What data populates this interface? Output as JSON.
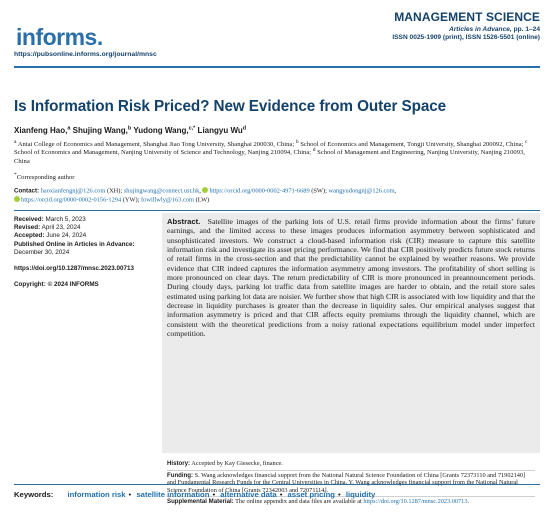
{
  "header": {
    "logo_text": "informs.",
    "journal_url": "https://pubsonline.informs.org/journal/mnsc",
    "journal_name": "MANAGEMENT SCIENCE",
    "issue_italic": "Articles in Advance,",
    "issue_pages": " pp. 1–24",
    "issn": "ISSN 0025-1909 (print), ISSN 1526-5501 (online)"
  },
  "title": "Is Information Risk Priced? New Evidence from Outer Space",
  "authors": [
    {
      "name": "Xianfeng Hao,",
      "sup": "a"
    },
    {
      "name": " Shujing Wang,",
      "sup": "b"
    },
    {
      "name": " Yudong Wang,",
      "sup": "c,*"
    },
    {
      "name": " Liangyu Wu",
      "sup": "d"
    }
  ],
  "affiliations": [
    {
      "sup": "a",
      "text": " Antai College of Economics and Management, Shanghai Jiao Tong University, Shanghai 200030, China; "
    },
    {
      "sup": "b",
      "text": " School of Economics and Management, Tongji University, Shanghai 200092, China; "
    },
    {
      "sup": "c",
      "text": " School of Economics and Management, Nanjing University of Science and Technology, Nanjing 210094, China; "
    },
    {
      "sup": "d",
      "text": " School of Management and Engineering, Nanjing University, Nanjing 210093, China"
    }
  ],
  "corresponding": {
    "sup": "*",
    "text": "Corresponding author"
  },
  "contact": {
    "label": "Contact:",
    "email_xh": "haoxianfengnj@126.com",
    "tag_xh": " (XH); ",
    "email_sw": "shujingwang@connect.ust.hk",
    "sep_sw": ", ",
    "orcid_sw": "https://orcid.org/0000-0002-4971-6689",
    "tag_sw": " (SW); ",
    "email_yw": "wangyudongnj@126.com",
    "sep_yw": ",",
    "orcid_yw": "https://orcid.org/0000-0002-0156-1294",
    "tag_yw": " (YW); ",
    "email_lw": "fowillwly@163.com",
    "tag_lw": " (LW)"
  },
  "meta": {
    "received_label": "Received:",
    "received": " March 5, 2023",
    "revised_label": "Revised:",
    "revised": " April 23, 2024",
    "accepted_label": "Accepted:",
    "accepted": " June 24, 2024",
    "published_label": "Published Online in Articles in Advance:",
    "published": "December 30, 2024",
    "doi": "https://doi.org/10.1287/mnsc.2023.00713",
    "copyright": "Copyright: © 2024 INFORMS"
  },
  "abstract": {
    "heading": "Abstract.",
    "text": "Satellite images of the parking lots of U.S. retail firms provide information about the firms’ future earnings, and the limited access to these images produces information asymmetry between sophisticated and unsophisticated investors. We construct a cloud-based information risk (CIR) measure to capture this satellite information risk and investigate its asset pricing performance. We find that CIR positively predicts future stock returns of retail firms in the cross-section and that the predictability cannot be explained by weather reasons. We provide evidence that CIR indeed captures the information asymmetry among investors. The profitability of short selling is more pronounced on clear days. The return predictability of CIR is more pronounced in preannouncement periods. During cloudy days, parking lot traffic data from satellite images are harder to obtain, and the retail store sales estimated using parking lot data are noisier. We further show that high CIR is associated with low liquidity and that the decrease in liquidity purchases is greater than the decrease in liquidity sales. Our empirical analyses suggest that information asymmetry is priced and that CIR affects equity premiums through the liquidity channel, which are consistent with the theoretical predictions from a noisy rational expectations equilibrium model under imperfect competition."
  },
  "notes": {
    "history_label": "History:",
    "history": " Accepted by Kay Giesecke, finance.",
    "funding_label": "Funding:",
    "funding": " S. Wang acknowledges financial support from the National Natural Science Foundation of China [Grants 72373110 and 71902140] and Fundamental Research Funds for the Central Universities in China. Y. Wang acknowledges financial support from the National Natural Science Foundation of China [Grants 72342003 and 72071114].",
    "supplemental_label": "Supplemental Material:",
    "supplemental": " The online appendix and data files are available at ",
    "supplemental_link": "https://doi.org/10.1287/mnsc.2023.00713",
    "supplemental_end": "."
  },
  "keywords": {
    "label": "Keywords:",
    "items": [
      "information risk",
      "satellite information",
      "alternative data",
      "asset pricing",
      "liquidity"
    ],
    "separator": "•"
  },
  "colors": {
    "brand_blue": "#2b6fa8",
    "title_navy": "#14426b",
    "link_blue": "#1f6fae",
    "abstract_bg": "#ebebeb",
    "orcid_green": "#a6ce39",
    "logo_green": "#9ec04a"
  },
  "icons": [
    "orcid-icon"
  ]
}
